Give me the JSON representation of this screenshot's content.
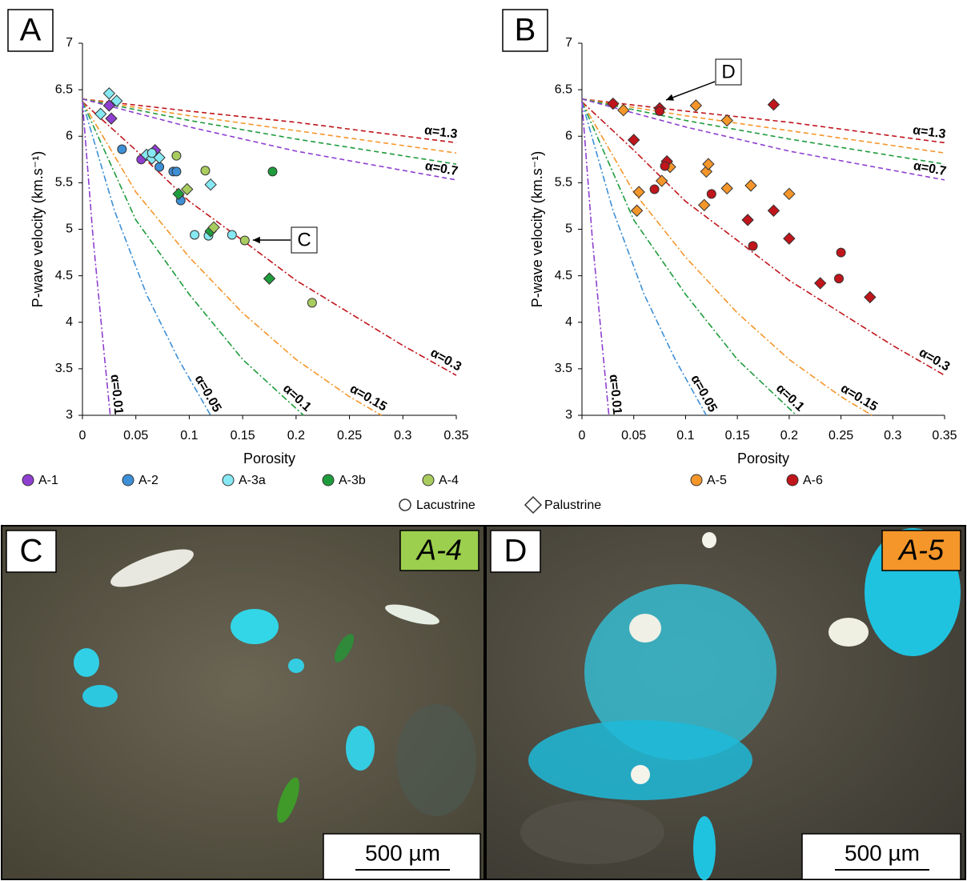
{
  "chart_data": [
    {
      "type": "scatter",
      "panel": "A",
      "xlabel": "Porosity",
      "ylabel": "P-wave velocity (km.s⁻¹)",
      "annotation": "C",
      "xlim": [
        0,
        0.35
      ],
      "ylim": [
        3,
        7
      ],
      "xticks": [
        0,
        0.05,
        0.1,
        0.15,
        0.2,
        0.25,
        0.3,
        0.35
      ],
      "yticks": [
        3,
        3.5,
        4,
        4.5,
        5,
        5.5,
        6,
        6.5,
        7
      ],
      "series": [
        {
          "name": "A-1",
          "color": "#8e3fd0",
          "x": [
            0.025,
            0.027,
            0.068,
            0.055
          ],
          "values": [
            6.33,
            6.19,
            5.85,
            5.75
          ],
          "markers": [
            "diamond",
            "diamond",
            "diamond",
            "circle"
          ]
        },
        {
          "name": "A-2",
          "color": "#3d8fd6",
          "x": [
            0.037,
            0.072,
            0.085,
            0.088,
            0.092
          ],
          "values": [
            5.86,
            5.67,
            5.62,
            5.62,
            5.31
          ],
          "markers": [
            "circle",
            "circle",
            "circle",
            "circle",
            "circle"
          ]
        },
        {
          "name": "A-3a",
          "color": "#86e8f2",
          "x": [
            0.025,
            0.032,
            0.017,
            0.06,
            0.065,
            0.072,
            0.12,
            0.065,
            0.105,
            0.118,
            0.14
          ],
          "values": [
            6.46,
            6.38,
            6.24,
            5.8,
            5.76,
            5.77,
            5.48,
            5.82,
            4.94,
            4.93,
            4.94
          ],
          "markers": [
            "diamond",
            "diamond",
            "diamond",
            "diamond",
            "diamond",
            "diamond",
            "diamond",
            "circle",
            "circle",
            "circle",
            "circle"
          ]
        },
        {
          "name": "A-3b",
          "color": "#1e9c3c",
          "x": [
            0.09,
            0.12,
            0.175,
            0.178
          ],
          "values": [
            5.38,
            4.98,
            4.47,
            5.62
          ],
          "markers": [
            "diamond",
            "diamond",
            "diamond",
            "circle"
          ]
        },
        {
          "name": "A-4",
          "color": "#a9cc5e",
          "x": [
            0.088,
            0.115,
            0.152,
            0.215,
            0.098,
            0.123
          ],
          "values": [
            5.79,
            5.63,
            4.88,
            4.21,
            5.43,
            5.02
          ],
          "markers": [
            "circle",
            "circle",
            "circle",
            "circle",
            "diamond",
            "diamond"
          ]
        }
      ],
      "curves": [
        {
          "label": "α=1.3",
          "color": "#c0151b",
          "style": "dashed",
          "x": [
            0,
            0.1,
            0.2,
            0.35
          ],
          "values": [
            6.4,
            6.27,
            6.15,
            5.93
          ]
        },
        {
          "color": "#f5962a",
          "style": "dashed",
          "x": [
            0,
            0.1,
            0.2,
            0.35
          ],
          "values": [
            6.4,
            6.22,
            6.06,
            5.82
          ]
        },
        {
          "color": "#1e9c3c",
          "style": "dashed",
          "x": [
            0,
            0.1,
            0.2,
            0.35
          ],
          "values": [
            6.4,
            6.17,
            5.97,
            5.7
          ]
        },
        {
          "label": "α=0.7",
          "color": "#8e3fd0",
          "style": "dashed",
          "x": [
            0,
            0.1,
            0.2,
            0.35
          ],
          "values": [
            6.4,
            6.1,
            5.84,
            5.53
          ]
        },
        {
          "label": "α=0.3",
          "color": "#c0151b",
          "style": "dashdot",
          "x": [
            0,
            0.05,
            0.1,
            0.15,
            0.2,
            0.25,
            0.3,
            0.35
          ],
          "values": [
            6.37,
            5.85,
            5.3,
            4.88,
            4.45,
            4.1,
            3.75,
            3.43
          ]
        },
        {
          "label": "α=0.15",
          "color": "#f5962a",
          "style": "dashdot",
          "x": [
            0,
            0.05,
            0.1,
            0.15,
            0.2,
            0.25,
            0.28
          ],
          "values": [
            6.37,
            5.4,
            4.7,
            4.1,
            3.6,
            3.2,
            3
          ]
        },
        {
          "label": "α=0.1",
          "color": "#1e9c3c",
          "style": "dashdot",
          "x": [
            0,
            0.05,
            0.1,
            0.15,
            0.207
          ],
          "values": [
            6.37,
            5.1,
            4.3,
            3.6,
            3
          ]
        },
        {
          "label": "α=0.05",
          "color": "#3d8fd6",
          "style": "dashdot",
          "x": [
            0,
            0.03,
            0.06,
            0.09,
            0.12
          ],
          "values": [
            6.37,
            5.2,
            4.3,
            3.6,
            3
          ]
        },
        {
          "label": "α=0.01",
          "color": "#8e3fd0",
          "style": "dashdot",
          "x": [
            0,
            0.01,
            0.02,
            0.026
          ],
          "values": [
            6.37,
            4.9,
            3.7,
            3
          ]
        }
      ]
    },
    {
      "type": "scatter",
      "panel": "B",
      "xlabel": "Porosity",
      "ylabel": "P-wave velocity (km.s⁻¹)",
      "annotation": "D",
      "xlim": [
        0,
        0.35
      ],
      "ylim": [
        3,
        7
      ],
      "xticks": [
        0,
        0.05,
        0.1,
        0.15,
        0.2,
        0.25,
        0.3,
        0.35
      ],
      "yticks": [
        3,
        3.5,
        4,
        4.5,
        5,
        5.5,
        6,
        6.5,
        7
      ],
      "series": [
        {
          "name": "A-5",
          "color": "#f5962a",
          "x": [
            0.04,
            0.11,
            0.14,
            0.055,
            0.053,
            0.077,
            0.085,
            0.12,
            0.122,
            0.118,
            0.14,
            0.163,
            0.2
          ],
          "values": [
            6.28,
            6.33,
            6.17,
            5.4,
            5.2,
            5.52,
            5.67,
            5.62,
            5.7,
            5.26,
            5.44,
            5.47,
            5.38
          ],
          "markers": [
            "diamond",
            "diamond",
            "diamond",
            "diamond",
            "diamond",
            "diamond",
            "diamond",
            "diamond",
            "diamond",
            "diamond",
            "diamond",
            "diamond",
            "diamond"
          ]
        },
        {
          "name": "A-6",
          "color": "#c0151b",
          "x": [
            0.03,
            0.075,
            0.185,
            0.05,
            0.082,
            0.16,
            0.185,
            0.2,
            0.23,
            0.278,
            0.075,
            0.07,
            0.08,
            0.125,
            0.165,
            0.25,
            0.248
          ],
          "values": [
            6.35,
            6.3,
            6.34,
            5.96,
            5.73,
            5.1,
            5.2,
            4.9,
            4.42,
            4.27,
            6.27,
            5.43,
            5.68,
            5.38,
            4.82,
            4.75,
            4.47
          ],
          "markers": [
            "diamond",
            "diamond",
            "diamond",
            "diamond",
            "diamond",
            "diamond",
            "diamond",
            "diamond",
            "diamond",
            "diamond",
            "circle",
            "circle",
            "circle",
            "circle",
            "circle",
            "circle",
            "circle"
          ]
        }
      ],
      "curves": [
        {
          "label": "α=1.3",
          "color": "#c0151b",
          "style": "dashed",
          "x": [
            0,
            0.1,
            0.2,
            0.35
          ],
          "values": [
            6.4,
            6.27,
            6.15,
            5.93
          ]
        },
        {
          "color": "#f5962a",
          "style": "dashed",
          "x": [
            0,
            0.1,
            0.2,
            0.35
          ],
          "values": [
            6.4,
            6.22,
            6.06,
            5.82
          ]
        },
        {
          "color": "#1e9c3c",
          "style": "dashed",
          "x": [
            0,
            0.1,
            0.2,
            0.35
          ],
          "values": [
            6.4,
            6.17,
            5.97,
            5.7
          ]
        },
        {
          "label": "α=0.7",
          "color": "#8e3fd0",
          "style": "dashed",
          "x": [
            0,
            0.1,
            0.2,
            0.35
          ],
          "values": [
            6.4,
            6.1,
            5.84,
            5.53
          ]
        },
        {
          "label": "α=0.3",
          "color": "#c0151b",
          "style": "dashdot",
          "x": [
            0,
            0.05,
            0.1,
            0.15,
            0.2,
            0.25,
            0.3,
            0.35
          ],
          "values": [
            6.37,
            5.85,
            5.3,
            4.88,
            4.45,
            4.1,
            3.75,
            3.43
          ]
        },
        {
          "label": "α=0.15",
          "color": "#f5962a",
          "style": "dashdot",
          "x": [
            0,
            0.05,
            0.1,
            0.15,
            0.2,
            0.25,
            0.28
          ],
          "values": [
            6.37,
            5.4,
            4.7,
            4.1,
            3.6,
            3.2,
            3
          ]
        },
        {
          "label": "α=0.1",
          "color": "#1e9c3c",
          "style": "dashdot",
          "x": [
            0,
            0.05,
            0.1,
            0.15,
            0.207
          ],
          "values": [
            6.37,
            5.1,
            4.3,
            3.6,
            3
          ]
        },
        {
          "label": "α=0.05",
          "color": "#3d8fd6",
          "style": "dashdot",
          "x": [
            0,
            0.03,
            0.06,
            0.09,
            0.12
          ],
          "values": [
            6.37,
            5.2,
            4.3,
            3.6,
            3
          ]
        },
        {
          "label": "α=0.01",
          "color": "#8e3fd0",
          "style": "dashdot",
          "x": [
            0,
            0.01,
            0.02,
            0.026
          ],
          "values": [
            6.37,
            4.9,
            3.7,
            3
          ]
        }
      ]
    }
  ],
  "shape_legend": [
    "Lacustrine",
    "Palustrine"
  ],
  "micrographs": [
    {
      "panel": "C",
      "sample": "A-4",
      "color": "#9ccf4e",
      "scale_bar": "500 µm"
    },
    {
      "panel": "D",
      "sample": "A-5",
      "color": "#f5962a",
      "scale_bar": "500 µm"
    }
  ]
}
